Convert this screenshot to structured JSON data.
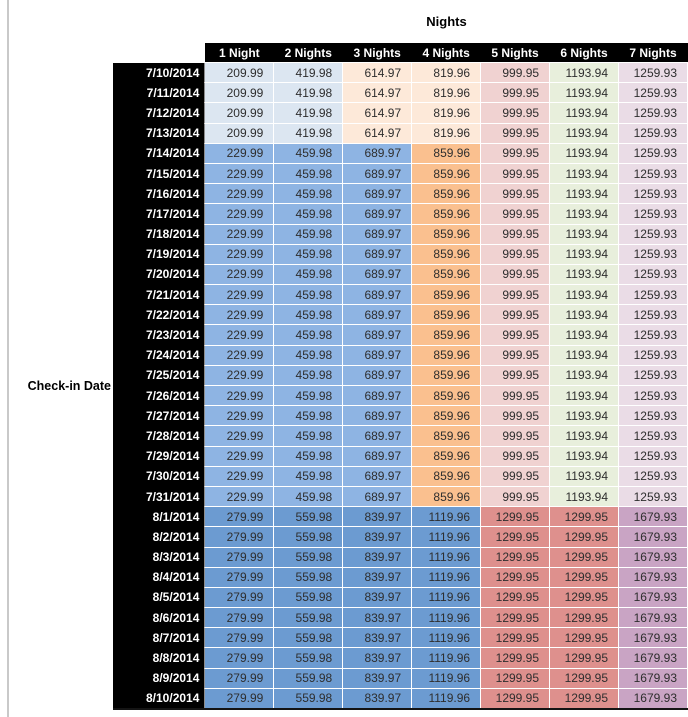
{
  "colors": {
    "header_bg": "#000000",
    "header_text": "#FFFFFF",
    "value_text": "#2E2E2E",
    "pane_divider": "#C9C9C9",
    "band_fills": {
      "jul10_13": [
        "#DCE6F1",
        "#DCE6F1",
        "#FDE9D9",
        "#FDE9D9",
        "#F0D2D1",
        "#E8EFDC",
        "#EADCE6"
      ],
      "jul14_31": [
        "#8EB4E3",
        "#8EB4E3",
        "#8EB4E3",
        "#FAC08F",
        "#F0D2D1",
        "#E8EFDC",
        "#EADCE6"
      ],
      "aug1_10": [
        "#6C9BD1",
        "#6C9BD1",
        "#6C9BD1",
        "#6C9BD1",
        "#DE908D",
        "#DE908D",
        "#C9A4C4"
      ]
    }
  },
  "chart_data": {
    "type": "table",
    "title": "Nights",
    "row_label": "Check-in Date",
    "columns": [
      "1 Night",
      "2 Nights",
      "3 Nights",
      "4 Nights",
      "5 Nights",
      "6 Nights",
      "7 Nights"
    ],
    "rows": [
      {
        "date": "7/10/2014",
        "band": "jul10_13",
        "values": [
          "209.99",
          "419.98",
          "614.97",
          "819.96",
          "999.95",
          "1193.94",
          "1259.93"
        ]
      },
      {
        "date": "7/11/2014",
        "band": "jul10_13",
        "values": [
          "209.99",
          "419.98",
          "614.97",
          "819.96",
          "999.95",
          "1193.94",
          "1259.93"
        ]
      },
      {
        "date": "7/12/2014",
        "band": "jul10_13",
        "values": [
          "209.99",
          "419.98",
          "614.97",
          "819.96",
          "999.95",
          "1193.94",
          "1259.93"
        ]
      },
      {
        "date": "7/13/2014",
        "band": "jul10_13",
        "values": [
          "209.99",
          "419.98",
          "614.97",
          "819.96",
          "999.95",
          "1193.94",
          "1259.93"
        ]
      },
      {
        "date": "7/14/2014",
        "band": "jul14_31",
        "values": [
          "229.99",
          "459.98",
          "689.97",
          "859.96",
          "999.95",
          "1193.94",
          "1259.93"
        ]
      },
      {
        "date": "7/15/2014",
        "band": "jul14_31",
        "values": [
          "229.99",
          "459.98",
          "689.97",
          "859.96",
          "999.95",
          "1193.94",
          "1259.93"
        ]
      },
      {
        "date": "7/16/2014",
        "band": "jul14_31",
        "values": [
          "229.99",
          "459.98",
          "689.97",
          "859.96",
          "999.95",
          "1193.94",
          "1259.93"
        ]
      },
      {
        "date": "7/17/2014",
        "band": "jul14_31",
        "values": [
          "229.99",
          "459.98",
          "689.97",
          "859.96",
          "999.95",
          "1193.94",
          "1259.93"
        ]
      },
      {
        "date": "7/18/2014",
        "band": "jul14_31",
        "values": [
          "229.99",
          "459.98",
          "689.97",
          "859.96",
          "999.95",
          "1193.94",
          "1259.93"
        ]
      },
      {
        "date": "7/19/2014",
        "band": "jul14_31",
        "values": [
          "229.99",
          "459.98",
          "689.97",
          "859.96",
          "999.95",
          "1193.94",
          "1259.93"
        ]
      },
      {
        "date": "7/20/2014",
        "band": "jul14_31",
        "values": [
          "229.99",
          "459.98",
          "689.97",
          "859.96",
          "999.95",
          "1193.94",
          "1259.93"
        ]
      },
      {
        "date": "7/21/2014",
        "band": "jul14_31",
        "values": [
          "229.99",
          "459.98",
          "689.97",
          "859.96",
          "999.95",
          "1193.94",
          "1259.93"
        ]
      },
      {
        "date": "7/22/2014",
        "band": "jul14_31",
        "values": [
          "229.99",
          "459.98",
          "689.97",
          "859.96",
          "999.95",
          "1193.94",
          "1259.93"
        ]
      },
      {
        "date": "7/23/2014",
        "band": "jul14_31",
        "values": [
          "229.99",
          "459.98",
          "689.97",
          "859.96",
          "999.95",
          "1193.94",
          "1259.93"
        ]
      },
      {
        "date": "7/24/2014",
        "band": "jul14_31",
        "values": [
          "229.99",
          "459.98",
          "689.97",
          "859.96",
          "999.95",
          "1193.94",
          "1259.93"
        ]
      },
      {
        "date": "7/25/2014",
        "band": "jul14_31",
        "values": [
          "229.99",
          "459.98",
          "689.97",
          "859.96",
          "999.95",
          "1193.94",
          "1259.93"
        ]
      },
      {
        "date": "7/26/2014",
        "band": "jul14_31",
        "values": [
          "229.99",
          "459.98",
          "689.97",
          "859.96",
          "999.95",
          "1193.94",
          "1259.93"
        ]
      },
      {
        "date": "7/27/2014",
        "band": "jul14_31",
        "values": [
          "229.99",
          "459.98",
          "689.97",
          "859.96",
          "999.95",
          "1193.94",
          "1259.93"
        ]
      },
      {
        "date": "7/28/2014",
        "band": "jul14_31",
        "values": [
          "229.99",
          "459.98",
          "689.97",
          "859.96",
          "999.95",
          "1193.94",
          "1259.93"
        ]
      },
      {
        "date": "7/29/2014",
        "band": "jul14_31",
        "values": [
          "229.99",
          "459.98",
          "689.97",
          "859.96",
          "999.95",
          "1193.94",
          "1259.93"
        ]
      },
      {
        "date": "7/30/2014",
        "band": "jul14_31",
        "values": [
          "229.99",
          "459.98",
          "689.97",
          "859.96",
          "999.95",
          "1193.94",
          "1259.93"
        ]
      },
      {
        "date": "7/31/2014",
        "band": "jul14_31",
        "values": [
          "229.99",
          "459.98",
          "689.97",
          "859.96",
          "999.95",
          "1193.94",
          "1259.93"
        ]
      },
      {
        "date": "8/1/2014",
        "band": "aug1_10",
        "values": [
          "279.99",
          "559.98",
          "839.97",
          "1119.96",
          "1299.95",
          "1299.95",
          "1679.93"
        ]
      },
      {
        "date": "8/2/2014",
        "band": "aug1_10",
        "values": [
          "279.99",
          "559.98",
          "839.97",
          "1119.96",
          "1299.95",
          "1299.95",
          "1679.93"
        ]
      },
      {
        "date": "8/3/2014",
        "band": "aug1_10",
        "values": [
          "279.99",
          "559.98",
          "839.97",
          "1119.96",
          "1299.95",
          "1299.95",
          "1679.93"
        ]
      },
      {
        "date": "8/4/2014",
        "band": "aug1_10",
        "values": [
          "279.99",
          "559.98",
          "839.97",
          "1119.96",
          "1299.95",
          "1299.95",
          "1679.93"
        ]
      },
      {
        "date": "8/5/2014",
        "band": "aug1_10",
        "values": [
          "279.99",
          "559.98",
          "839.97",
          "1119.96",
          "1299.95",
          "1299.95",
          "1679.93"
        ]
      },
      {
        "date": "8/6/2014",
        "band": "aug1_10",
        "values": [
          "279.99",
          "559.98",
          "839.97",
          "1119.96",
          "1299.95",
          "1299.95",
          "1679.93"
        ]
      },
      {
        "date": "8/7/2014",
        "band": "aug1_10",
        "values": [
          "279.99",
          "559.98",
          "839.97",
          "1119.96",
          "1299.95",
          "1299.95",
          "1679.93"
        ]
      },
      {
        "date": "8/8/2014",
        "band": "aug1_10",
        "values": [
          "279.99",
          "559.98",
          "839.97",
          "1119.96",
          "1299.95",
          "1299.95",
          "1679.93"
        ]
      },
      {
        "date": "8/9/2014",
        "band": "aug1_10",
        "values": [
          "279.99",
          "559.98",
          "839.97",
          "1119.96",
          "1299.95",
          "1299.95",
          "1679.93"
        ]
      },
      {
        "date": "8/10/2014",
        "band": "aug1_10",
        "values": [
          "279.99",
          "559.98",
          "839.97",
          "1119.96",
          "1299.95",
          "1299.95",
          "1679.93"
        ]
      }
    ]
  }
}
